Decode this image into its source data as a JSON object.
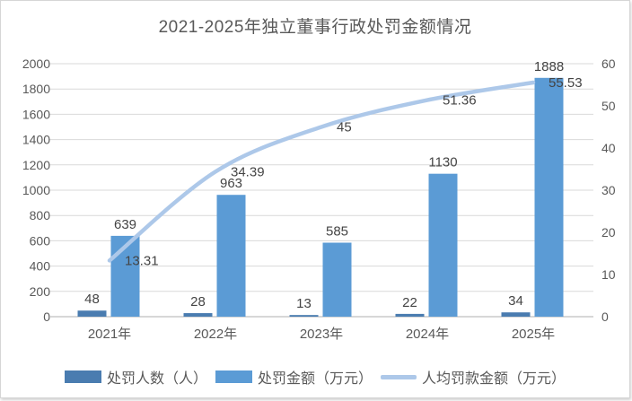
{
  "title": "2021-2025年独立董事行政处罚金额情况",
  "chart_data": {
    "type": "bar",
    "subtype": "combo-bar-line",
    "title": "2021-2025年独立董事行政处罚金额情况",
    "categories": [
      "2021年",
      "2022年",
      "2023年",
      "2024年",
      "2025年"
    ],
    "series": [
      {
        "name": "处罚人数（人）",
        "kind": "bar",
        "axis": "left",
        "color": "#4a7cb0",
        "values": [
          48,
          28,
          13,
          22,
          34
        ]
      },
      {
        "name": "处罚金额（万元）",
        "kind": "bar",
        "axis": "left",
        "color": "#5b9bd5",
        "values": [
          639,
          963,
          585,
          1130,
          1888
        ]
      },
      {
        "name": "人均罚款金额（万元）",
        "kind": "line",
        "axis": "right",
        "color": "#adc8e9",
        "values": [
          13.31,
          34.39,
          45,
          51.36,
          55.53
        ]
      }
    ],
    "left_axis": {
      "min": 0,
      "max": 2000,
      "step": 200
    },
    "right_axis": {
      "min": 0,
      "max": 60,
      "step": 10
    },
    "grid": true,
    "legend_position": "bottom",
    "data_labels": true
  },
  "colors": {
    "grid": "#d9d9d9",
    "axis_line": "#bfbfbf",
    "tick": "#c6c6c6",
    "axis_text": "#595959",
    "data_label_text": "#444444",
    "title_text": "#595959",
    "background": "#ffffff",
    "frame_border": "#d6d6d6"
  }
}
